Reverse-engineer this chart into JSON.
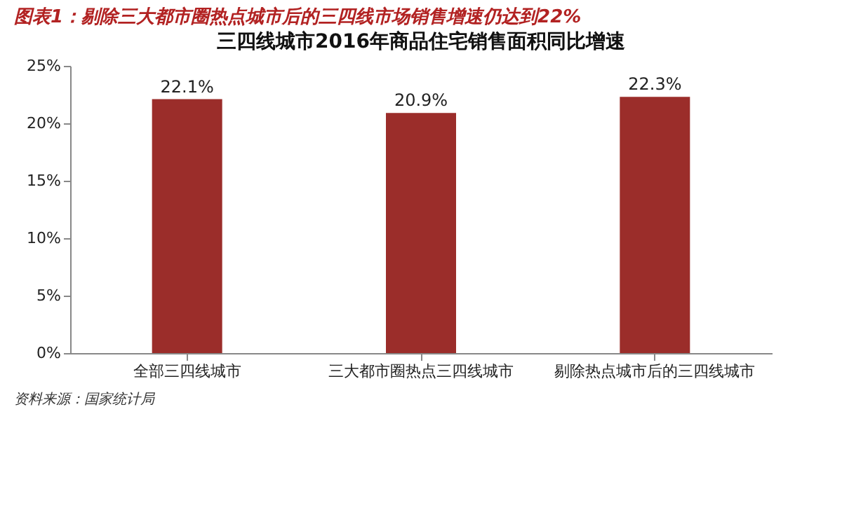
{
  "chart_data": {
    "type": "bar",
    "title": "图表1：剔除三大都市圈热点城市后的三四线市场销售增速仍达到22%",
    "subtitle": "三四线城市2016年商品住宅销售面积同比增速",
    "categories": [
      "全部三四线城市",
      "三大都市圈热点三四线城市",
      "剔除热点城市后的三四线城市"
    ],
    "values": [
      22.1,
      20.9,
      22.3
    ],
    "value_labels": [
      "22.1%",
      "20.9%",
      "22.3%"
    ],
    "color": "#9b2d2a",
    "ylim": [
      0,
      25
    ],
    "yticks": [
      {
        "value": 0,
        "label": "0%"
      },
      {
        "value": 5,
        "label": "5%"
      },
      {
        "value": 10,
        "label": "10%"
      },
      {
        "value": 15,
        "label": "15%"
      },
      {
        "value": 20,
        "label": "20%"
      },
      {
        "value": 25,
        "label": "25%"
      }
    ],
    "grid": false,
    "annotations": [
      "资料来源：国家统计局"
    ]
  }
}
